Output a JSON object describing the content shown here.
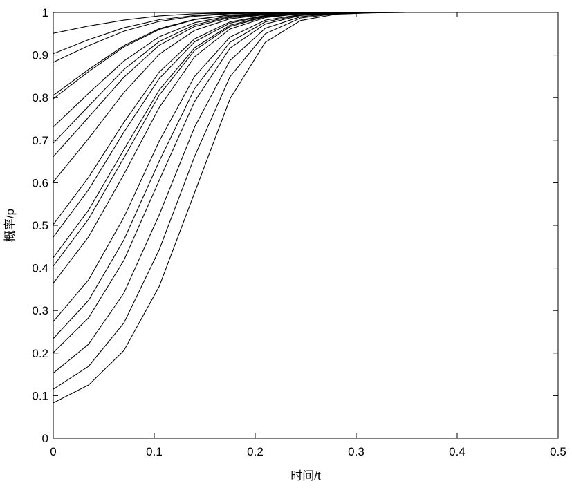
{
  "chart_data": {
    "type": "line",
    "title": "",
    "xlabel": "时间/t",
    "ylabel": "概率/p",
    "xlim": [
      0,
      0.5
    ],
    "ylim": [
      0,
      1
    ],
    "grid": false,
    "legend": "none",
    "line_color": "#000000",
    "xticks": [
      "0",
      "0.1",
      "0.2",
      "0.3",
      "0.4",
      "0.5"
    ],
    "yticks": [
      "0",
      "0.1",
      "0.2",
      "0.3",
      "0.4",
      "0.5",
      "0.6",
      "0.7",
      "0.8",
      "0.9",
      "1"
    ],
    "x": [
      0,
      0.035,
      0.07,
      0.105,
      0.14,
      0.175,
      0.21,
      0.245,
      0.28,
      0.315,
      0.35
    ],
    "series": [
      {
        "values": [
          0.951,
          0.968,
          0.982,
          0.992,
          0.997,
          0.999,
          1,
          1,
          1,
          1,
          1
        ]
      },
      {
        "values": [
          0.903,
          0.936,
          0.964,
          0.983,
          0.993,
          0.998,
          0.999,
          1,
          1,
          1,
          1
        ]
      },
      {
        "values": [
          0.883,
          0.922,
          0.956,
          0.979,
          0.991,
          0.997,
          0.999,
          1,
          1,
          1,
          1
        ]
      },
      {
        "values": [
          0.805,
          0.866,
          0.922,
          0.962,
          0.984,
          0.994,
          0.998,
          1,
          1,
          1,
          1
        ]
      },
      {
        "values": [
          0.797,
          0.861,
          0.919,
          0.96,
          0.983,
          0.994,
          0.998,
          1,
          1,
          1,
          1
        ]
      },
      {
        "values": [
          0.731,
          0.81,
          0.886,
          0.943,
          0.976,
          0.992,
          0.997,
          0.999,
          1,
          1,
          1
        ]
      },
      {
        "values": [
          0.693,
          0.78,
          0.866,
          0.932,
          0.971,
          0.99,
          0.997,
          0.999,
          1,
          1,
          1
        ]
      },
      {
        "values": [
          0.661,
          0.754,
          0.848,
          0.923,
          0.967,
          0.988,
          0.996,
          0.999,
          1,
          1,
          1
        ]
      },
      {
        "values": [
          0.602,
          0.704,
          0.812,
          0.902,
          0.958,
          0.985,
          0.995,
          0.999,
          1,
          1,
          1
        ]
      },
      {
        "values": [
          0.502,
          0.613,
          0.742,
          0.86,
          0.938,
          0.978,
          0.993,
          0.998,
          1,
          1,
          1
        ]
      },
      {
        "values": [
          0.472,
          0.584,
          0.719,
          0.845,
          0.931,
          0.975,
          0.992,
          0.998,
          1,
          1,
          1
        ]
      },
      {
        "values": [
          0.424,
          0.536,
          0.678,
          0.818,
          0.917,
          0.97,
          0.991,
          0.998,
          1,
          1,
          1
        ]
      },
      {
        "values": [
          0.404,
          0.515,
          0.659,
          0.806,
          0.911,
          0.967,
          0.99,
          0.997,
          0.999,
          1,
          1
        ]
      },
      {
        "values": [
          0.364,
          0.473,
          0.62,
          0.777,
          0.896,
          0.961,
          0.988,
          0.997,
          0.999,
          1,
          1
        ]
      },
      {
        "values": [
          0.274,
          0.372,
          0.519,
          0.698,
          0.85,
          0.942,
          0.982,
          0.995,
          0.999,
          1,
          1
        ]
      },
      {
        "values": [
          0.234,
          0.324,
          0.466,
          0.651,
          0.821,
          0.93,
          0.978,
          0.994,
          0.999,
          1,
          1
        ]
      },
      {
        "values": [
          0.201,
          0.283,
          0.418,
          0.606,
          0.791,
          0.916,
          0.973,
          0.993,
          0.998,
          1,
          1
        ]
      },
      {
        "values": [
          0.153,
          0.221,
          0.341,
          0.525,
          0.731,
          0.887,
          0.963,
          0.99,
          0.998,
          1,
          1
        ]
      },
      {
        "values": [
          0.115,
          0.169,
          0.271,
          0.443,
          0.662,
          0.849,
          0.95,
          0.987,
          0.997,
          0.999,
          1
        ]
      },
      {
        "values": [
          0.083,
          0.125,
          0.206,
          0.357,
          0.577,
          0.797,
          0.93,
          0.981,
          0.996,
          0.999,
          1
        ]
      }
    ]
  }
}
